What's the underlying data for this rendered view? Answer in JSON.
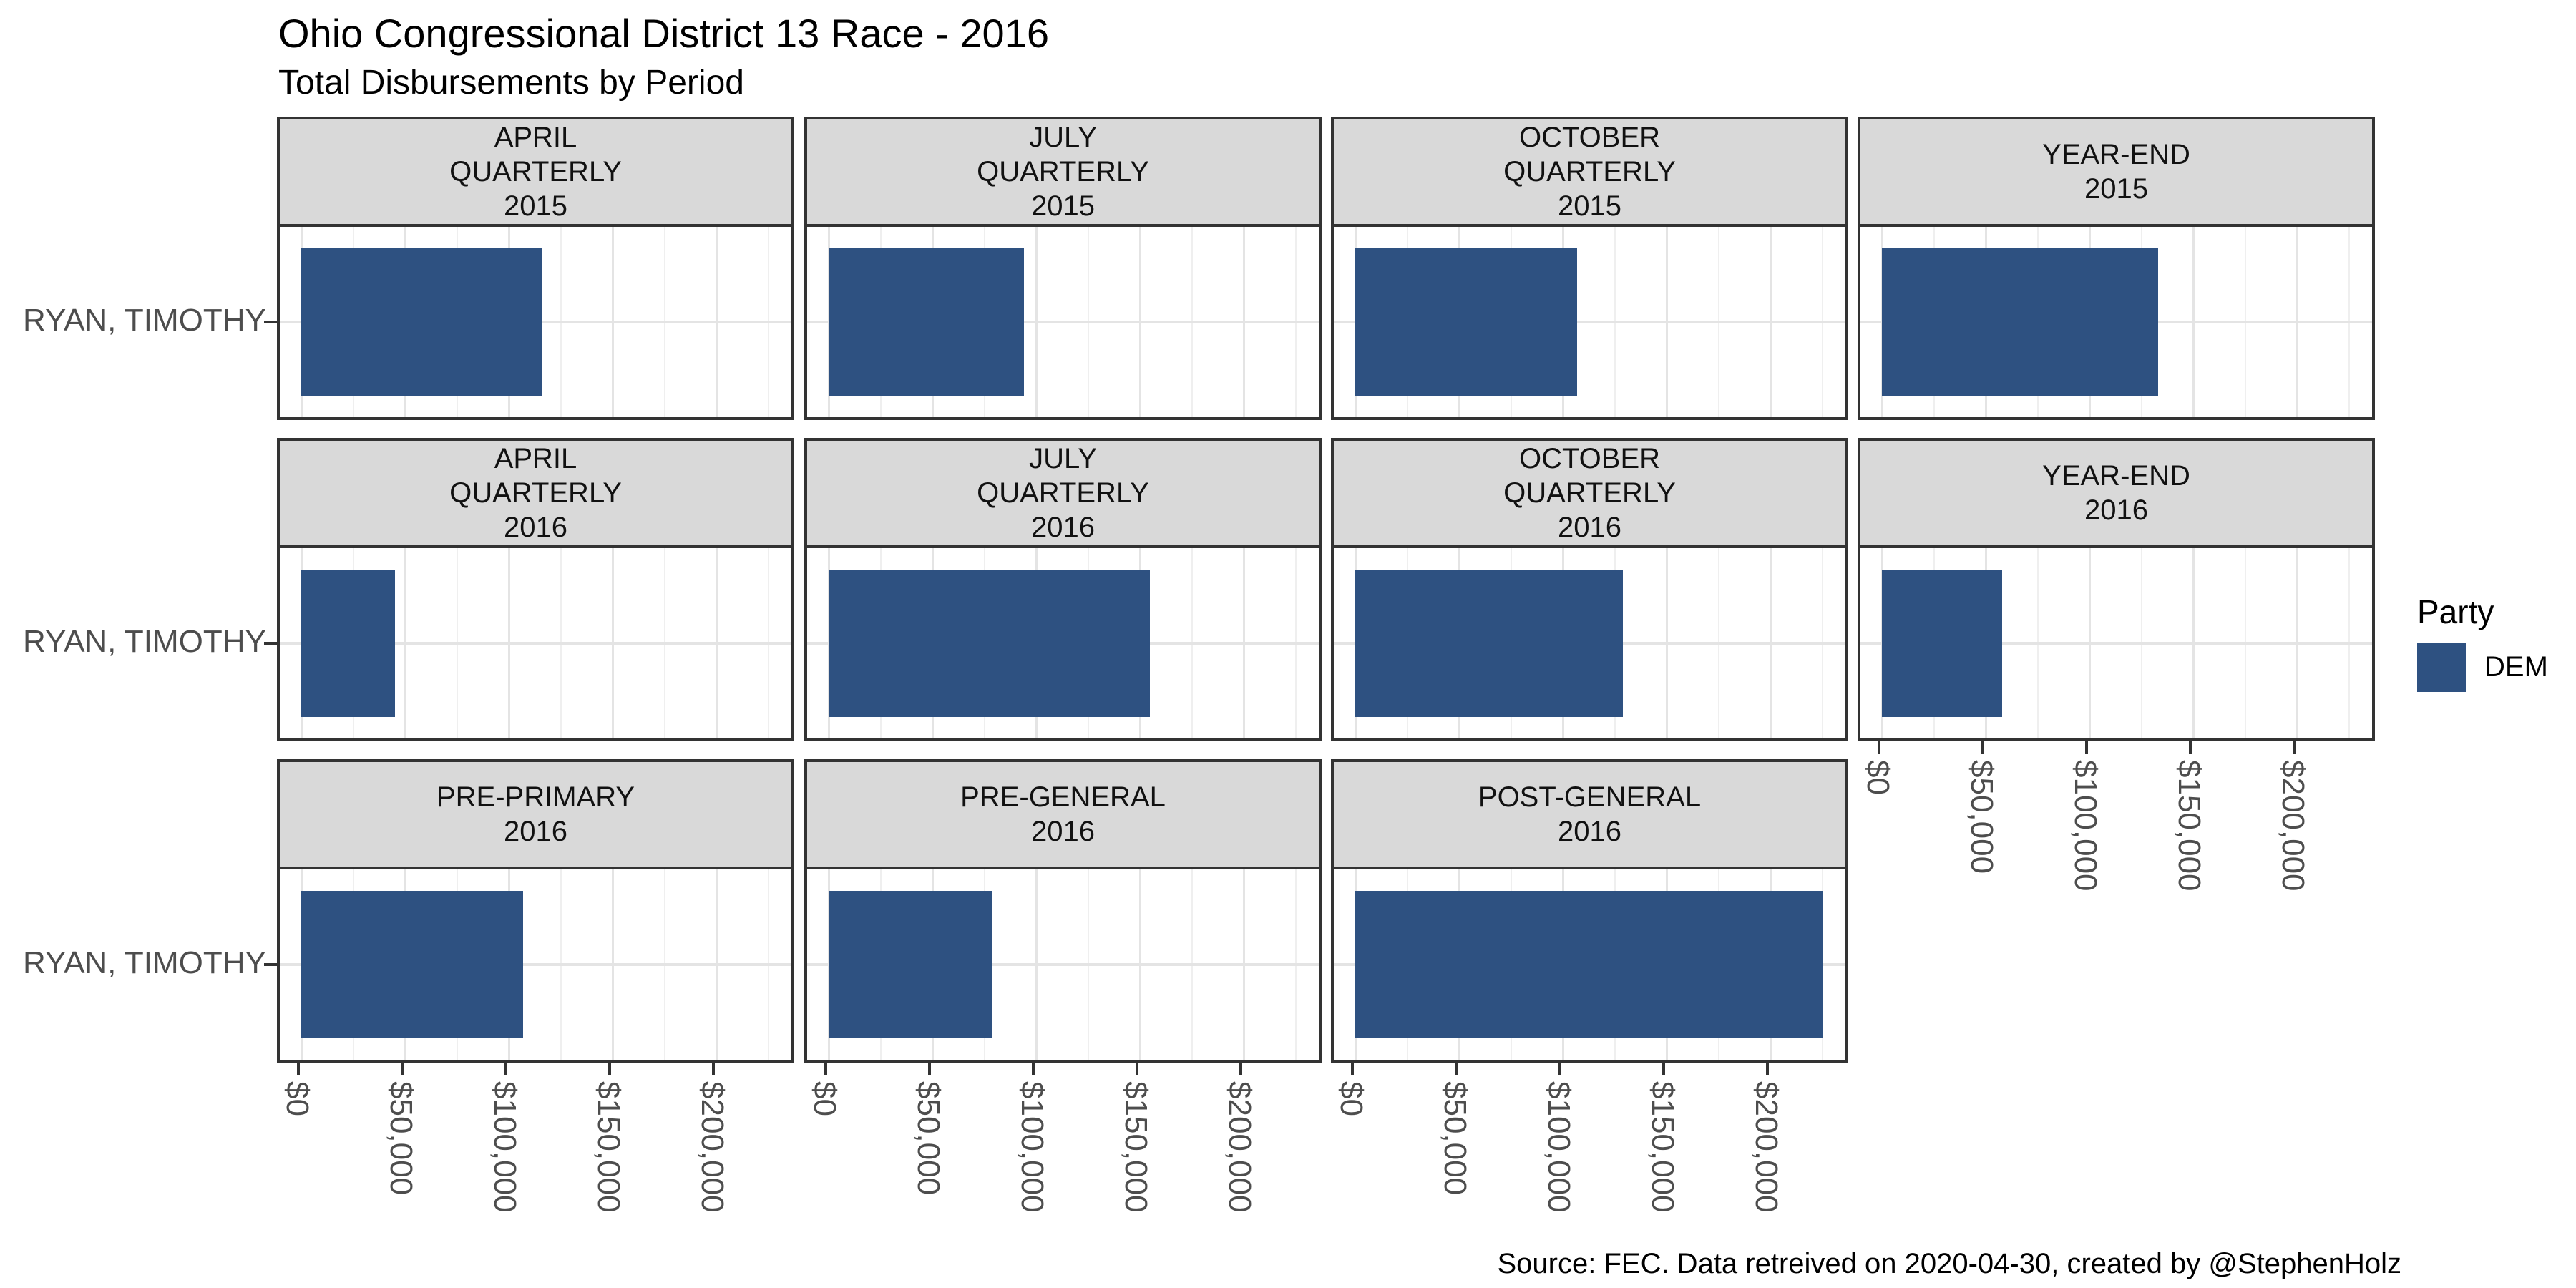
{
  "title": "Ohio Congressional District 13 Race - 2016",
  "subtitle": "Total Disbursements by Period",
  "caption": "Source: FEC. Data retreived on 2020-04-30, created by @StephenHolz",
  "legend": {
    "title": "Party",
    "items": [
      {
        "label": "DEM",
        "color": "#2E5181"
      }
    ]
  },
  "y_axis": {
    "category": "RYAN, TIMOTHY"
  },
  "x_axis": {
    "tick_labels": [
      "$0",
      "$50,000",
      "$100,000",
      "$150,000",
      "$200,000"
    ],
    "tick_values": [
      0,
      50000,
      100000,
      150000,
      200000
    ],
    "minor_values": [
      25000,
      75000,
      125000,
      175000,
      225000
    ]
  },
  "chart_data": {
    "type": "bar",
    "orientation": "horizontal",
    "title": "Ohio Congressional District 13 Race - 2016",
    "subtitle": "Total Disbursements by Period",
    "candidate": "RYAN, TIMOTHY",
    "party": "DEM",
    "xlim": [
      -11000,
      236000
    ],
    "grid": "on",
    "legend_position": "right",
    "facets": [
      {
        "period": "APRIL QUARTERLY 2015",
        "strip_lines": [
          "APRIL",
          "QUARTERLY",
          "2015"
        ],
        "row": 0,
        "col": 0,
        "party": "DEM",
        "value": 116000
      },
      {
        "period": "JULY QUARTERLY 2015",
        "strip_lines": [
          "JULY",
          "QUARTERLY",
          "2015"
        ],
        "row": 0,
        "col": 1,
        "party": "DEM",
        "value": 94000
      },
      {
        "period": "OCTOBER QUARTERLY 2015",
        "strip_lines": [
          "OCTOBER",
          "QUARTERLY",
          "2015"
        ],
        "row": 0,
        "col": 2,
        "party": "DEM",
        "value": 107000
      },
      {
        "period": "YEAR-END 2015",
        "strip_lines": [
          "YEAR-END",
          "2015"
        ],
        "row": 0,
        "col": 3,
        "party": "DEM",
        "value": 133000
      },
      {
        "period": "APRIL QUARTERLY 2016",
        "strip_lines": [
          "APRIL",
          "QUARTERLY",
          "2016"
        ],
        "row": 1,
        "col": 0,
        "party": "DEM",
        "value": 45000
      },
      {
        "period": "JULY QUARTERLY 2016",
        "strip_lines": [
          "JULY",
          "QUARTERLY",
          "2016"
        ],
        "row": 1,
        "col": 1,
        "party": "DEM",
        "value": 155000
      },
      {
        "period": "OCTOBER QUARTERLY 2016",
        "strip_lines": [
          "OCTOBER",
          "QUARTERLY",
          "2016"
        ],
        "row": 1,
        "col": 2,
        "party": "DEM",
        "value": 129000
      },
      {
        "period": "YEAR-END 2016",
        "strip_lines": [
          "YEAR-END",
          "2016"
        ],
        "row": 1,
        "col": 3,
        "party": "DEM",
        "value": 58000
      },
      {
        "period": "PRE-PRIMARY 2016",
        "strip_lines": [
          "PRE-PRIMARY",
          "2016"
        ],
        "row": 2,
        "col": 0,
        "party": "DEM",
        "value": 107000
      },
      {
        "period": "PRE-GENERAL 2016",
        "strip_lines": [
          "PRE-GENERAL",
          "2016"
        ],
        "row": 2,
        "col": 1,
        "party": "DEM",
        "value": 79000
      },
      {
        "period": "POST-GENERAL 2016",
        "strip_lines": [
          "POST-GENERAL",
          "2016"
        ],
        "row": 2,
        "col": 2,
        "party": "DEM",
        "value": 225000
      }
    ]
  },
  "colors": {
    "bar": "#2E5181",
    "strip_bg": "#D9D9D9",
    "border": "#333333",
    "grid_major": "#E4E4E4",
    "grid_minor": "#EFEFEF",
    "axis_text": "#4D4D4D",
    "tick": "#333333",
    "text": "#000000"
  }
}
